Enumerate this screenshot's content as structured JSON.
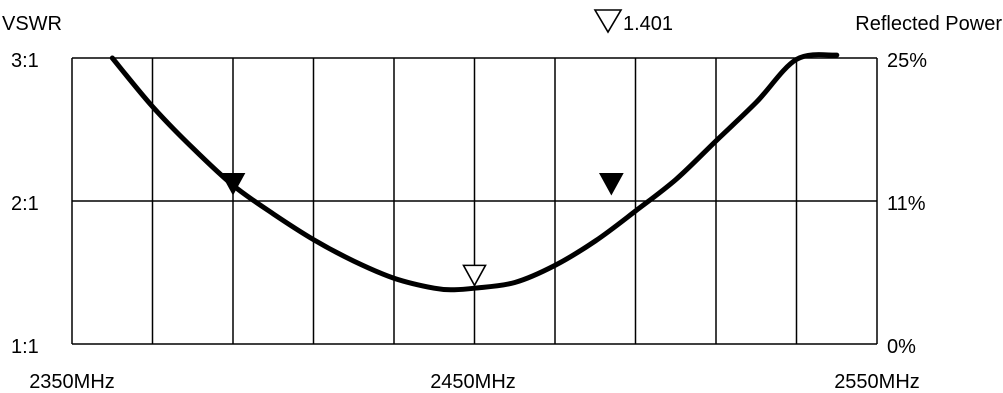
{
  "chart_data": {
    "type": "line",
    "left_axis_title": "VSWR",
    "right_axis_title": "Reflected Power",
    "left_ticks": [
      {
        "ratio": 3,
        "label": "3:1"
      },
      {
        "ratio": 2,
        "label": "2:1"
      },
      {
        "ratio": 1,
        "label": "1:1"
      }
    ],
    "right_ticks": [
      "25%",
      "11%",
      "0%"
    ],
    "x_ticks": [
      {
        "freq": 2350,
        "label": "2350MHz"
      },
      {
        "freq": 2450,
        "label": "2450MHz"
      },
      {
        "freq": 2550,
        "label": "2550MHz"
      }
    ],
    "xlim": [
      2350,
      2550
    ],
    "ylim": [
      1,
      3
    ],
    "x_grid_step_mhz": 20,
    "y_grid": [
      1,
      2,
      3
    ],
    "series": [
      {
        "x": [
          2360,
          2370,
          2380,
          2390,
          2400,
          2410,
          2420,
          2430,
          2440,
          2445,
          2450,
          2460,
          2470,
          2480,
          2490,
          2500,
          2510,
          2520,
          2530,
          2540
        ],
        "y": [
          3.0,
          2.66,
          2.37,
          2.11,
          1.91,
          1.73,
          1.58,
          1.46,
          1.39,
          1.38,
          1.39,
          1.43,
          1.55,
          1.72,
          1.93,
          2.15,
          2.42,
          2.69,
          2.99,
          3.02
        ]
      }
    ],
    "markers": [
      {
        "freq": 2390,
        "vswr": 2.05,
        "style": "filled"
      },
      {
        "freq": 2450,
        "vswr": 1.41,
        "style": "hollow"
      },
      {
        "freq": 2484,
        "vswr": 2.05,
        "style": "filled"
      }
    ],
    "marker_readout": "1.401"
  }
}
